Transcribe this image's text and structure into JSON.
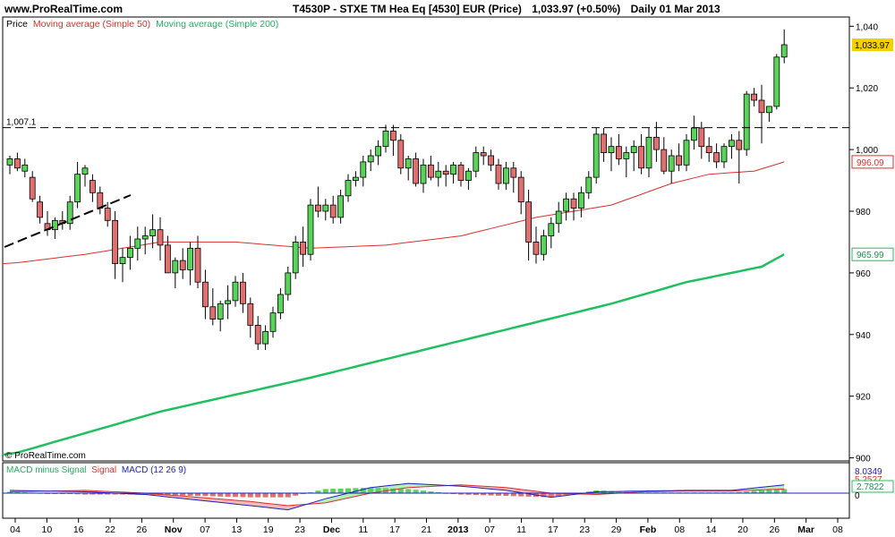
{
  "header": {
    "site": "www.ProRealTime.com",
    "ticker": "T4530P - STXE TM Hea Eq [4530] EUR (Price)",
    "last": "1,033.97 (+0.50%)",
    "period": "Daily 01 Mar 2013"
  },
  "legend": {
    "price": "Price",
    "ma50": "Moving average (Simple 50)",
    "ma200": "Moving average (Simple 200)",
    "macd_hist": "MACD minus Signal",
    "macd_signal": "Signal",
    "macd_line": "MACD (12 26 9)"
  },
  "watermark": "© ProRealTime.com",
  "colors": {
    "up": "#5ad35a",
    "down": "#e07070",
    "ma50": "#d83030",
    "ma200": "#20c060",
    "macd": "#2020c0",
    "label_current": "#f4d000"
  },
  "chart_data": {
    "type": "candlestick",
    "x_tick_labels": [
      "04",
      "10",
      "16",
      "22",
      "26",
      "Nov",
      "07",
      "13",
      "19",
      "23",
      "Dec",
      "11",
      "17",
      "21",
      "2013",
      "07",
      "11",
      "17",
      "23",
      "29",
      "Feb",
      "08",
      "14",
      "20",
      "26",
      "Mar",
      "08"
    ],
    "y_ticks": [
      900,
      920,
      940,
      960,
      980,
      1000,
      1020,
      1040
    ],
    "y_tick_labels": [
      "900",
      "920",
      "940",
      "960",
      "980",
      "1,000",
      "1,020",
      "1,040"
    ],
    "ylim": [
      899,
      1043
    ],
    "resistance": {
      "value": 1007.1,
      "label": "1,007.1"
    },
    "last_value_labels": {
      "close": "1,033.97",
      "ma50": "996.09",
      "ma200": "965.99"
    },
    "macd_labels": [
      "8.0349",
      "5.2527",
      "2.7822"
    ],
    "macd_zero_label": "0",
    "candles": [
      [
        995,
        998,
        992,
        997
      ],
      [
        997,
        999,
        993,
        994
      ],
      [
        993,
        997,
        991,
        995
      ],
      [
        991,
        993,
        983,
        984
      ],
      [
        983,
        985,
        976,
        978
      ],
      [
        976,
        980,
        972,
        974
      ],
      [
        974,
        978,
        971,
        977
      ],
      [
        977,
        980,
        974,
        976
      ],
      [
        976,
        985,
        974,
        983
      ],
      [
        983,
        996,
        981,
        992
      ],
      [
        992,
        995,
        988,
        994
      ],
      [
        990,
        992,
        983,
        986
      ],
      [
        986,
        988,
        979,
        981
      ],
      [
        981,
        983,
        975,
        977
      ],
      [
        977,
        980,
        958,
        963
      ],
      [
        963,
        968,
        957,
        965
      ],
      [
        965,
        972,
        961,
        968
      ],
      [
        968,
        975,
        964,
        971
      ],
      [
        971,
        975,
        966,
        972
      ],
      [
        972,
        979,
        968,
        974
      ],
      [
        974,
        978,
        964,
        969
      ],
      [
        969,
        972,
        960,
        960
      ],
      [
        960,
        965,
        955,
        964
      ],
      [
        964,
        968,
        958,
        961
      ],
      [
        961,
        970,
        956,
        968
      ],
      [
        968,
        972,
        955,
        957
      ],
      [
        957,
        961,
        945,
        949
      ],
      [
        949,
        955,
        943,
        945
      ],
      [
        945,
        951,
        941,
        950
      ],
      [
        950,
        956,
        945,
        951
      ],
      [
        951,
        959,
        949,
        957
      ],
      [
        957,
        960,
        947,
        950
      ],
      [
        950,
        952,
        939,
        943
      ],
      [
        943,
        946,
        935,
        937
      ],
      [
        937,
        943,
        935,
        941
      ],
      [
        941,
        949,
        939,
        947
      ],
      [
        947,
        955,
        945,
        953
      ],
      [
        953,
        962,
        951,
        960
      ],
      [
        960,
        972,
        958,
        970
      ],
      [
        970,
        975,
        962,
        966
      ],
      [
        966,
        984,
        964,
        982
      ],
      [
        982,
        988,
        978,
        980
      ],
      [
        980,
        984,
        977,
        982
      ],
      [
        982,
        985,
        976,
        978
      ],
      [
        978,
        987,
        976,
        985
      ],
      [
        985,
        992,
        983,
        990
      ],
      [
        990,
        993,
        988,
        991
      ],
      [
        991,
        998,
        988,
        996
      ],
      [
        996,
        1000,
        993,
        998
      ],
      [
        998,
        1003,
        995,
        1001
      ],
      [
        1001,
        1008,
        999,
        1006
      ],
      [
        1006,
        1008,
        998,
        1003
      ],
      [
        1003,
        1005,
        992,
        994
      ],
      [
        994,
        998,
        990,
        997
      ],
      [
        997,
        999,
        988,
        989
      ],
      [
        989,
        997,
        986,
        995
      ],
      [
        995,
        998,
        990,
        991
      ],
      [
        991,
        996,
        988,
        993
      ],
      [
        993,
        995,
        988,
        992
      ],
      [
        992,
        996,
        989,
        995
      ],
      [
        995,
        996,
        988,
        990
      ],
      [
        990,
        994,
        987,
        993
      ],
      [
        993,
        1001,
        991,
        999
      ],
      [
        999,
        1001,
        995,
        998
      ],
      [
        998,
        1000,
        993,
        995
      ],
      [
        995,
        997,
        987,
        989
      ],
      [
        989,
        996,
        987,
        994
      ],
      [
        994,
        996,
        986,
        991
      ],
      [
        991,
        993,
        979,
        983
      ],
      [
        983,
        987,
        964,
        970
      ],
      [
        970,
        975,
        963,
        966
      ],
      [
        966,
        974,
        964,
        972
      ],
      [
        972,
        978,
        968,
        976
      ],
      [
        976,
        983,
        973,
        980
      ],
      [
        980,
        986,
        977,
        984
      ],
      [
        984,
        986,
        977,
        981
      ],
      [
        981,
        988,
        978,
        986
      ],
      [
        986,
        993,
        984,
        991
      ],
      [
        991,
        1007,
        989,
        1005
      ],
      [
        1005,
        1007,
        996,
        999
      ],
      [
        999,
        1004,
        993,
        1001
      ],
      [
        1001,
        1005,
        995,
        997
      ],
      [
        997,
        1001,
        991,
        999
      ],
      [
        999,
        1003,
        993,
        1001
      ],
      [
        1001,
        1005,
        992,
        994
      ],
      [
        994,
        1007,
        991,
        1004
      ],
      [
        1004,
        1009,
        996,
        1000
      ],
      [
        1000,
        1004,
        992,
        993
      ],
      [
        993,
        1000,
        989,
        998
      ],
      [
        998,
        1002,
        993,
        995
      ],
      [
        995,
        1005,
        993,
        1003
      ],
      [
        1003,
        1011,
        1000,
        1007
      ],
      [
        1007,
        1009,
        997,
        1001
      ],
      [
        1001,
        1004,
        996,
        999
      ],
      [
        999,
        1002,
        994,
        996
      ],
      [
        996,
        1002,
        994,
        1001
      ],
      [
        1001,
        1005,
        997,
        1003
      ],
      [
        1003,
        1006,
        989,
        1000
      ],
      [
        1000,
        1019,
        998,
        1018
      ],
      [
        1018,
        1020,
        1014,
        1016
      ],
      [
        1016,
        1021,
        1002,
        1012
      ],
      [
        1012,
        1014,
        1009,
        1014
      ],
      [
        1014,
        1031,
        1013,
        1030
      ],
      [
        1030,
        1039,
        1028,
        1034
      ]
    ],
    "ma50": [
      {
        "i": 0,
        "v": 963
      },
      {
        "i": 10,
        "v": 966
      },
      {
        "i": 20,
        "v": 970
      },
      {
        "i": 30,
        "v": 970
      },
      {
        "i": 40,
        "v": 968
      },
      {
        "i": 50,
        "v": 969
      },
      {
        "i": 60,
        "v": 972
      },
      {
        "i": 70,
        "v": 978
      },
      {
        "i": 80,
        "v": 982
      },
      {
        "i": 88,
        "v": 989
      },
      {
        "i": 93,
        "v": 992
      },
      {
        "i": 99,
        "v": 993
      },
      {
        "i": 103,
        "v": 996
      }
    ],
    "ma200": [
      {
        "i": 0,
        "v": 901
      },
      {
        "i": 20,
        "v": 915
      },
      {
        "i": 40,
        "v": 926
      },
      {
        "i": 60,
        "v": 938
      },
      {
        "i": 80,
        "v": 950
      },
      {
        "i": 90,
        "v": 957
      },
      {
        "i": 100,
        "v": 962
      },
      {
        "i": 103,
        "v": 966
      }
    ],
    "macd_line": [
      {
        "i": 0,
        "v": 2
      },
      {
        "i": 10,
        "v": 1
      },
      {
        "i": 18,
        "v": -1
      },
      {
        "i": 25,
        "v": -5
      },
      {
        "i": 32,
        "v": -9
      },
      {
        "i": 37,
        "v": -12
      },
      {
        "i": 42,
        "v": -4
      },
      {
        "i": 48,
        "v": 4
      },
      {
        "i": 53,
        "v": 7
      },
      {
        "i": 60,
        "v": 5
      },
      {
        "i": 66,
        "v": 2
      },
      {
        "i": 72,
        "v": -3
      },
      {
        "i": 78,
        "v": 1
      },
      {
        "i": 84,
        "v": 1.5
      },
      {
        "i": 90,
        "v": 2
      },
      {
        "i": 96,
        "v": 2
      },
      {
        "i": 103,
        "v": 6
      }
    ],
    "macd_signal": [
      {
        "i": 0,
        "v": 1
      },
      {
        "i": 10,
        "v": 2
      },
      {
        "i": 18,
        "v": 0
      },
      {
        "i": 25,
        "v": -3
      },
      {
        "i": 32,
        "v": -6
      },
      {
        "i": 37,
        "v": -9
      },
      {
        "i": 42,
        "v": -7
      },
      {
        "i": 48,
        "v": 0
      },
      {
        "i": 53,
        "v": 4
      },
      {
        "i": 60,
        "v": 6
      },
      {
        "i": 66,
        "v": 4
      },
      {
        "i": 72,
        "v": 0
      },
      {
        "i": 78,
        "v": -1
      },
      {
        "i": 84,
        "v": 1
      },
      {
        "i": 90,
        "v": 1.5
      },
      {
        "i": 96,
        "v": 1.5
      },
      {
        "i": 103,
        "v": 3
      }
    ]
  }
}
